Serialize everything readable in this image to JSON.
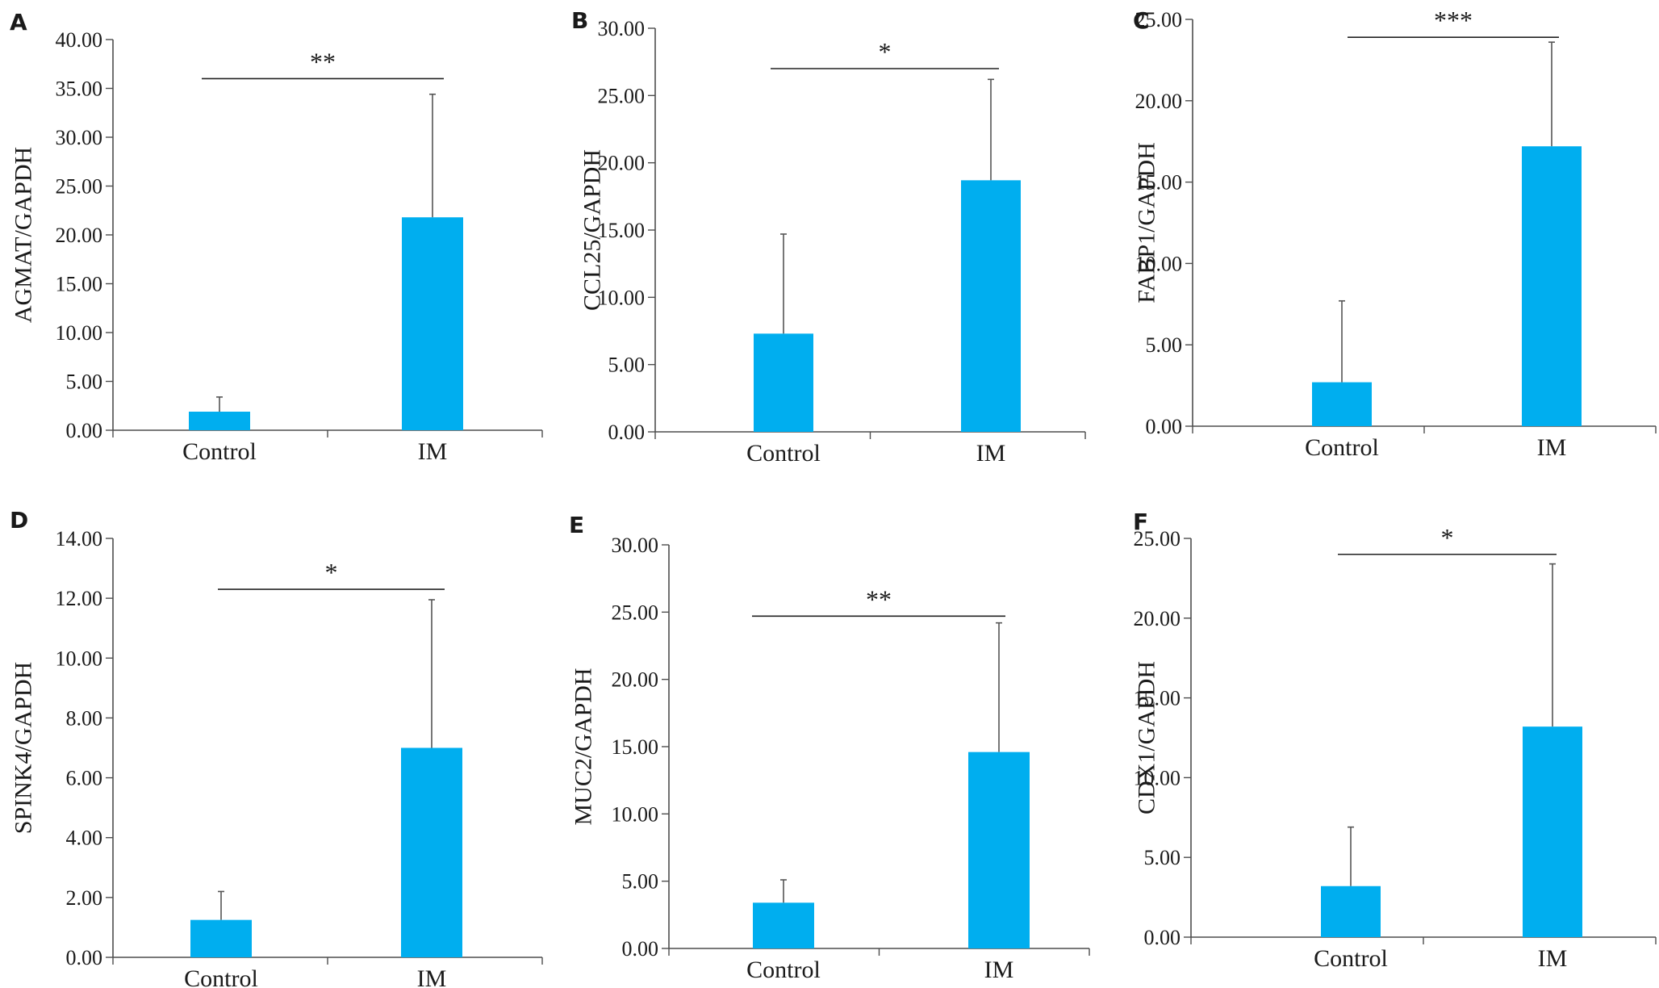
{
  "colors": {
    "bar": "#00aeef",
    "axis": "#4d4d4d",
    "error_bar": "#555555",
    "text": "#1a1a1a"
  },
  "chart_data": [
    {
      "panel": "A",
      "type": "bar",
      "categories": [
        "Control",
        "IM"
      ],
      "values": [
        1.9,
        21.8
      ],
      "errors": [
        1.5,
        12.6
      ],
      "ylabel": "AGMAT/GAPDH",
      "ylim": [
        0,
        40
      ],
      "yticks": [
        "0.00",
        "5.00",
        "10.00",
        "15.00",
        "20.00",
        "25.00",
        "30.00",
        "35.00",
        "40.00"
      ],
      "significance": "**",
      "sig_value": 36.0
    },
    {
      "panel": "B",
      "type": "bar",
      "categories": [
        "Control",
        "IM"
      ],
      "values": [
        7.3,
        18.7
      ],
      "errors": [
        7.4,
        7.5
      ],
      "ylabel": "CCL25/GAPDH",
      "ylim": [
        0,
        30
      ],
      "yticks": [
        "0.00",
        "5.00",
        "10.00",
        "15.00",
        "20.00",
        "25.00",
        "30.00"
      ],
      "significance": "*",
      "sig_value": 27.0
    },
    {
      "panel": "C",
      "type": "bar",
      "categories": [
        "Control",
        "IM"
      ],
      "values": [
        2.7,
        17.2
      ],
      "errors": [
        5.0,
        6.4
      ],
      "ylabel": "FABP1/GAPDH",
      "ylim": [
        0,
        25
      ],
      "yticks": [
        "0.00",
        "5.00",
        "10.00",
        "15.00",
        "20.00",
        "25.00"
      ],
      "significance": "***",
      "sig_value": 23.9
    },
    {
      "panel": "D",
      "type": "bar",
      "categories": [
        "Control",
        "IM"
      ],
      "values": [
        1.25,
        7.0
      ],
      "errors": [
        0.95,
        4.95
      ],
      "ylabel": "SPINK4/GAPDH",
      "ylim": [
        0,
        14
      ],
      "yticks": [
        "0.00",
        "2.00",
        "4.00",
        "6.00",
        "8.00",
        "10.00",
        "12.00",
        "14.00"
      ],
      "significance": "*",
      "sig_value": 12.3
    },
    {
      "panel": "E",
      "type": "bar",
      "categories": [
        "Control",
        "IM"
      ],
      "values": [
        3.4,
        14.6
      ],
      "errors": [
        1.7,
        9.6
      ],
      "ylabel": "MUC2/GAPDH",
      "ylim": [
        0,
        30
      ],
      "yticks": [
        "0.00",
        "5.00",
        "10.00",
        "15.00",
        "20.00",
        "25.00",
        "30.00"
      ],
      "significance": "**",
      "sig_value": 24.7
    },
    {
      "panel": "F",
      "type": "bar",
      "categories": [
        "Control",
        "IM"
      ],
      "values": [
        3.2,
        13.2
      ],
      "errors": [
        3.7,
        10.2
      ],
      "ylabel": "CDX1/GAPDH",
      "ylim": [
        0,
        25
      ],
      "yticks": [
        "0.00",
        "5.00",
        "10.00",
        "15.00",
        "20.00",
        "25.00"
      ],
      "significance": "*",
      "sig_value": 24.0
    }
  ]
}
